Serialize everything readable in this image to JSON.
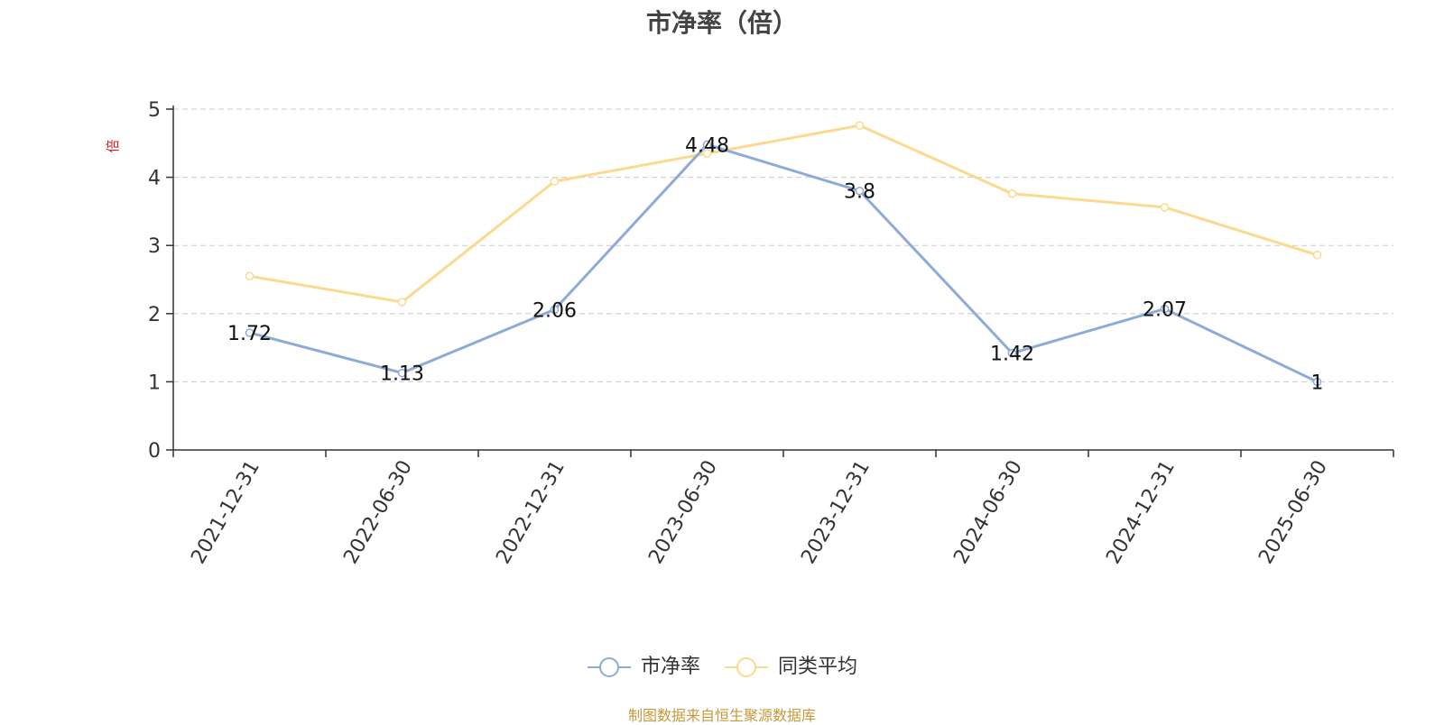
{
  "title": "市净率（倍）",
  "source_note": "制图数据来自恒生聚源数据库",
  "colors": {
    "series_1": "#8eabd8",
    "series_2": "#fbd98e",
    "ylabel": "#e02020",
    "grid": "#cccccc",
    "axis": "#333333"
  },
  "chart_data": {
    "type": "line",
    "title": "市净率（倍）",
    "ylabel": "倍",
    "xlabel": "",
    "ylim": [
      0,
      5
    ],
    "yticks": [
      0,
      1,
      2,
      3,
      4,
      5
    ],
    "grid": true,
    "legend_position": "bottom-center",
    "categories": [
      "2021-12-31",
      "2022-06-30",
      "2022-12-31",
      "2023-06-30",
      "2023-12-31",
      "2024-06-30",
      "2024-12-31",
      "2025-06-30"
    ],
    "series": [
      {
        "name": "市净率",
        "values": [
          1.72,
          1.13,
          2.06,
          4.48,
          3.8,
          1.42,
          2.07,
          1
        ],
        "data_labels": [
          "1.72",
          "1.13",
          "2.06",
          "4.48",
          "3.8",
          "1.42",
          "2.07",
          "1"
        ]
      },
      {
        "name": "同类平均",
        "values": [
          2.55,
          2.17,
          3.94,
          4.35,
          4.76,
          3.76,
          3.56,
          2.86
        ]
      }
    ]
  }
}
